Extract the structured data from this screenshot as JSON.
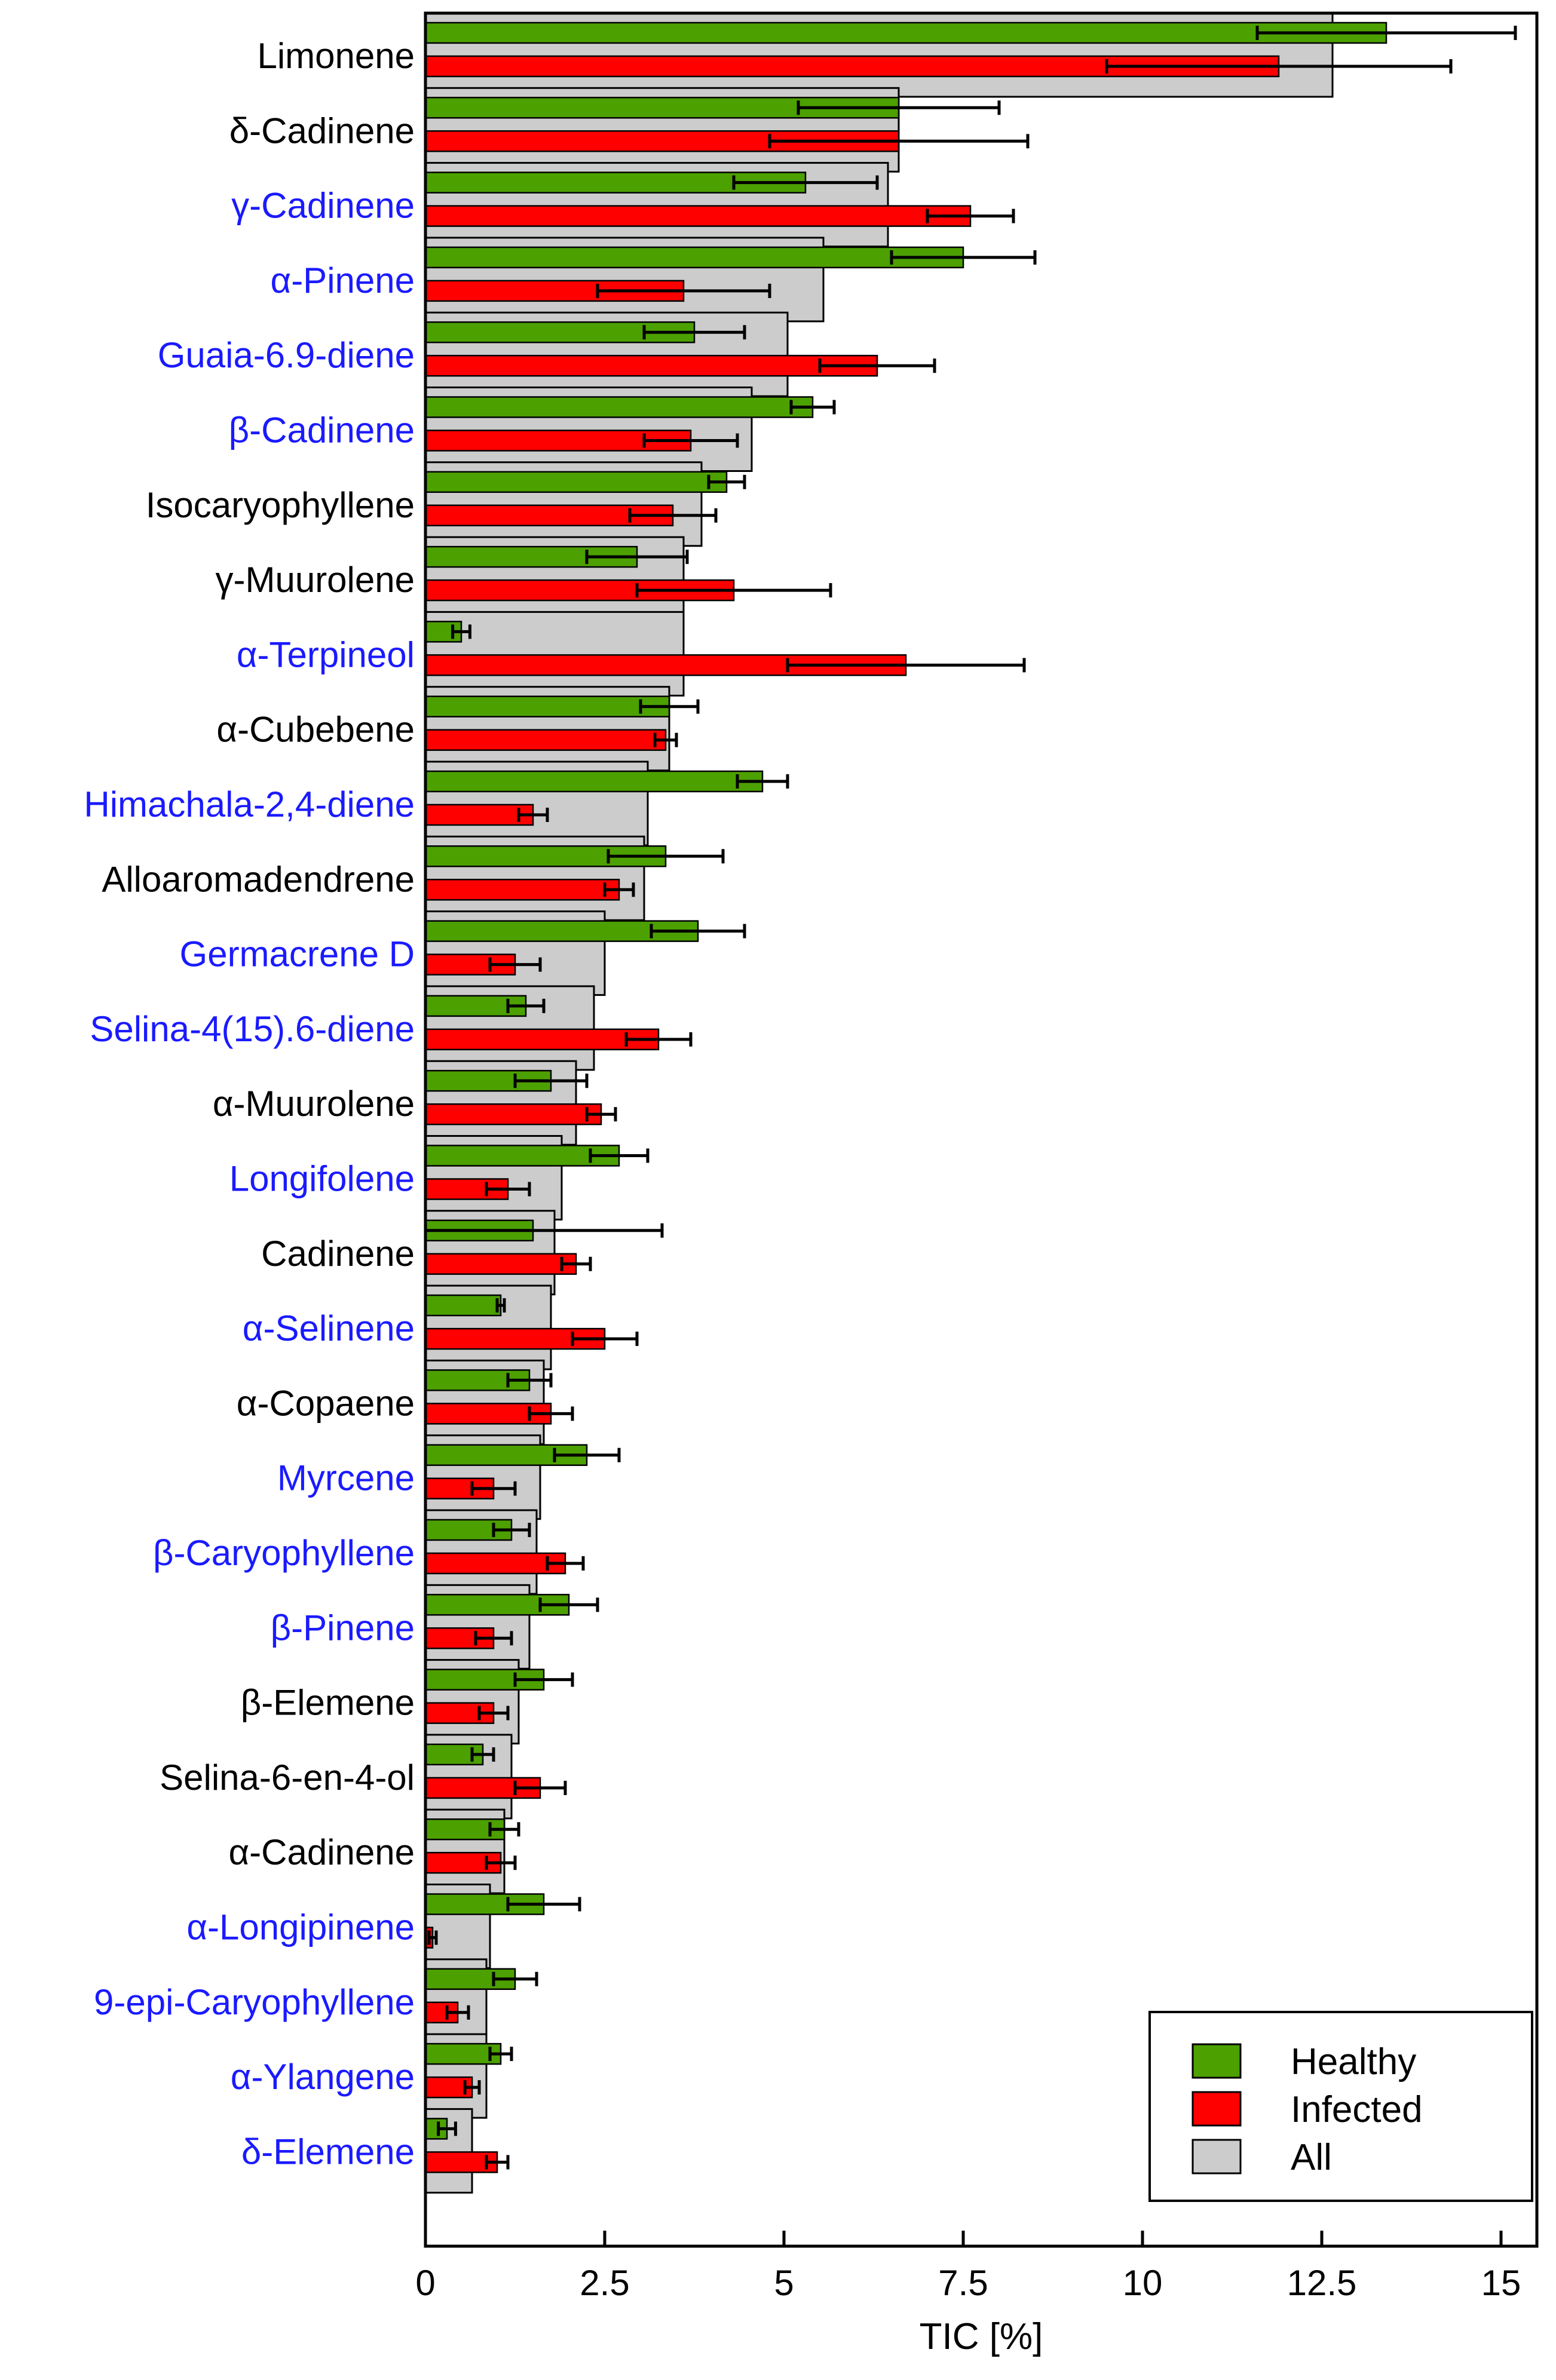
{
  "chart_data": {
    "type": "bar",
    "orientation": "horizontal",
    "xlabel": "TIC [%]",
    "xlim": [
      0,
      15.5
    ],
    "xticks": [
      0,
      2.5,
      5,
      7.5,
      10,
      12.5,
      15
    ],
    "xtick_labels": [
      "0",
      "2.5",
      "5",
      "7.5",
      "10",
      "12.5",
      "15"
    ],
    "grid": false,
    "legend_position": "bottom-right",
    "categories": [
      "Limonene",
      "δ-Cadinene",
      "γ-Cadinene",
      "α-Pinene",
      "Guaia-6.9-diene",
      "β-Cadinene",
      "Isocaryophyllene",
      "γ-Muurolene",
      "α-Terpineol",
      "α-Cubebene",
      "Himachala-2,4-diene",
      "Alloaromadendrene",
      "Germacrene D",
      "Selina-4(15).6-diene",
      "α-Muurolene",
      "Longifolene",
      "Cadinene",
      "α-Selinene",
      "α-Copaene",
      "Myrcene",
      "β-Caryophyllene",
      "β-Pinene",
      "β-Elemene",
      "Selina-6-en-4-ol",
      "α-Cadinene",
      "α-Longipinene",
      "9-epi-Caryophyllene",
      "α-Ylangene",
      "δ-Elemene"
    ],
    "label_colors": [
      "#000000",
      "#000000",
      "#1a1aff",
      "#1a1aff",
      "#1a1aff",
      "#1a1aff",
      "#000000",
      "#000000",
      "#1a1aff",
      "#000000",
      "#1a1aff",
      "#000000",
      "#1a1aff",
      "#1a1aff",
      "#000000",
      "#1a1aff",
      "#000000",
      "#1a1aff",
      "#000000",
      "#1a1aff",
      "#1a1aff",
      "#1a1aff",
      "#000000",
      "#000000",
      "#000000",
      "#1a1aff",
      "#1a1aff",
      "#1a1aff",
      "#1a1aff"
    ],
    "series": [
      {
        "name": "Healthy",
        "color": "#4ca000",
        "values": [
          13.4,
          6.6,
          5.3,
          7.5,
          3.75,
          5.4,
          4.2,
          2.95,
          0.5,
          3.4,
          4.7,
          3.35,
          3.8,
          1.4,
          1.75,
          2.7,
          1.5,
          1.05,
          1.45,
          2.25,
          1.2,
          2.0,
          1.65,
          0.8,
          1.1,
          1.65,
          1.25,
          1.05,
          0.3
        ],
        "errors": [
          1.8,
          1.4,
          1.0,
          1.0,
          0.7,
          0.3,
          0.25,
          0.7,
          0.12,
          0.4,
          0.35,
          0.8,
          0.65,
          0.25,
          0.5,
          0.4,
          1.8,
          0.05,
          0.3,
          0.45,
          0.25,
          0.4,
          0.4,
          0.15,
          0.2,
          0.5,
          0.3,
          0.15,
          0.12
        ]
      },
      {
        "name": "Infected",
        "color": "#ff0000",
        "values": [
          11.9,
          6.6,
          7.6,
          3.6,
          6.3,
          3.7,
          3.45,
          4.3,
          6.7,
          3.35,
          1.5,
          2.7,
          1.25,
          3.25,
          2.45,
          1.15,
          2.1,
          2.5,
          1.75,
          0.95,
          1.95,
          0.95,
          0.95,
          1.6,
          1.05,
          0.1,
          0.45,
          0.65,
          1.0
        ],
        "errors": [
          2.4,
          1.8,
          0.6,
          1.2,
          0.8,
          0.65,
          0.6,
          1.35,
          1.65,
          0.15,
          0.2,
          0.2,
          0.35,
          0.45,
          0.2,
          0.3,
          0.2,
          0.45,
          0.3,
          0.3,
          0.25,
          0.25,
          0.2,
          0.35,
          0.2,
          0.05,
          0.15,
          0.1,
          0.15
        ]
      },
      {
        "name": "All",
        "color": "#cccccc",
        "values": [
          12.65,
          6.6,
          6.45,
          5.55,
          5.05,
          4.55,
          3.85,
          3.6,
          3.6,
          3.4,
          3.1,
          3.05,
          2.5,
          2.35,
          2.1,
          1.9,
          1.8,
          1.75,
          1.65,
          1.6,
          1.55,
          1.45,
          1.3,
          1.2,
          1.1,
          0.9,
          0.85,
          0.85,
          0.65
        ]
      }
    ]
  }
}
